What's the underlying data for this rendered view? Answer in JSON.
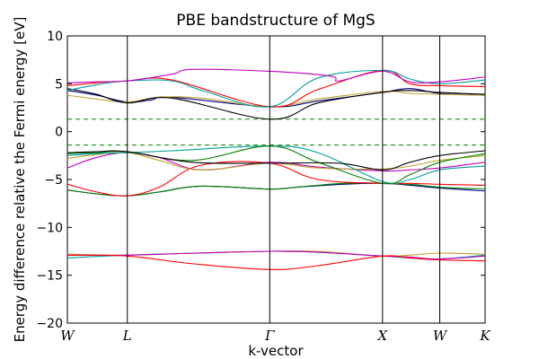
{
  "chart_data": {
    "type": "line",
    "title": "PBE bandstructure of MgS",
    "xlabel": "k-vector",
    "ylabel": "Energy difference relative the Fermi energy [eV]",
    "ylim": [
      -20,
      10
    ],
    "xlim": [
      0,
      1
    ],
    "yticks": [
      10,
      5,
      0,
      -5,
      -10,
      -15,
      -20
    ],
    "ytick_labels": [
      "10",
      "5",
      "0",
      "−5",
      "−10",
      "−15",
      "−20"
    ],
    "kpoints": [
      {
        "label": "W",
        "x": 0.0
      },
      {
        "label": "L",
        "x": 0.1435
      },
      {
        "label": "Γ",
        "x": 0.4845
      },
      {
        "label": "X",
        "x": 0.7545
      },
      {
        "label": "W",
        "x": 0.8915
      },
      {
        "label": "K",
        "x": 1.0
      }
    ],
    "fermi_lines": [
      1.3,
      -1.4
    ],
    "grid": false,
    "series": [
      {
        "color": "#000080",
        "x": [
          0,
          0.07,
          0.1435,
          0.22,
          0.32,
          0.4845,
          0.55,
          0.66,
          0.7545,
          0.82,
          0.8915,
          1.0
        ],
        "values": [
          -6.1,
          -6.5,
          -6.7,
          -6.3,
          -5.7,
          -6.0,
          -5.8,
          -5.5,
          -5.4,
          -5.6,
          -5.9,
          -6.2
        ]
      },
      {
        "color": "#008000",
        "x": [
          0,
          0.07,
          0.1435,
          0.22,
          0.32,
          0.4845,
          0.55,
          0.66,
          0.7545,
          0.82,
          0.8915,
          1.0
        ],
        "values": [
          -6.1,
          -6.5,
          -6.7,
          -6.3,
          -5.7,
          -6.0,
          -5.8,
          -5.4,
          -5.4,
          -5.5,
          -5.8,
          -6.0
        ]
      },
      {
        "color": "#ff0000",
        "x": [
          0,
          0.07,
          0.1435,
          0.22,
          0.32,
          0.4845,
          0.6,
          0.7545,
          0.82,
          0.8915,
          1.0
        ],
        "values": [
          -5.5,
          -6.3,
          -6.7,
          -5.8,
          -3.5,
          -3.3,
          -5.0,
          -5.4,
          -5.4,
          -5.5,
          -5.6
        ]
      },
      {
        "color": "#c000c0",
        "x": [
          0,
          0.07,
          0.1435,
          0.22,
          0.32,
          0.4845,
          0.6,
          0.7545,
          0.82,
          0.8915,
          1.0
        ],
        "values": [
          -3.8,
          -2.7,
          -2.2,
          -2.7,
          -4.0,
          -3.2,
          -3.7,
          -4.1,
          -4.0,
          -3.8,
          -3.2
        ]
      },
      {
        "color": "#c0a030",
        "x": [
          0,
          0.07,
          0.1435,
          0.22,
          0.32,
          0.4845,
          0.6,
          0.7545,
          0.82,
          0.8915,
          1.0
        ],
        "values": [
          -2.8,
          -2.4,
          -2.2,
          -3.0,
          -4.0,
          -3.3,
          -3.8,
          -3.9,
          -3.6,
          -3.0,
          -2.5
        ]
      },
      {
        "color": "#00a0a0",
        "x": [
          0,
          0.07,
          0.1435,
          0.25,
          0.4845,
          0.6,
          0.7545,
          0.82,
          0.8915,
          1.0
        ],
        "values": [
          -2.5,
          -2.3,
          -2.2,
          -2.0,
          -1.5,
          -2.2,
          -5.2,
          -5.0,
          -4.0,
          -3.6
        ]
      },
      {
        "color": "#008000",
        "x": [
          0,
          0.07,
          0.1435,
          0.3,
          0.4845,
          0.6,
          0.7545,
          0.82,
          0.8915,
          1.0
        ],
        "values": [
          -2.3,
          -2.2,
          -2.1,
          -3.0,
          -1.5,
          -3.2,
          -5.4,
          -4.5,
          -3.2,
          -2.3
        ]
      },
      {
        "color": "#000000",
        "x": [
          0,
          0.07,
          0.1435,
          0.3,
          0.4845,
          0.65,
          0.7545,
          0.82,
          0.8915,
          1.0
        ],
        "values": [
          -2.2,
          -2.1,
          -2.1,
          -3.2,
          -3.3,
          -3.3,
          -4.0,
          -3.2,
          -2.5,
          -2.0
        ]
      },
      {
        "color": "#000080",
        "x": [
          0,
          0.07,
          0.1435,
          0.2,
          0.25,
          0.4845,
          0.6,
          0.7545,
          0.82,
          0.8915,
          1.0
        ],
        "values": [
          4.3,
          3.8,
          3.1,
          3.3,
          3.6,
          2.6,
          3.2,
          4.1,
          4.5,
          4.0,
          3.8
        ]
      },
      {
        "color": "#c0a030",
        "x": [
          0,
          0.07,
          0.1435,
          0.22,
          0.32,
          0.4845,
          0.6,
          0.7545,
          0.82,
          0.8915,
          1.0
        ],
        "values": [
          3.8,
          3.4,
          3.1,
          3.6,
          3.5,
          2.6,
          3.4,
          4.2,
          4.0,
          3.9,
          3.8
        ]
      },
      {
        "color": "#000000",
        "x": [
          0,
          0.07,
          0.1435,
          0.25,
          0.4845,
          0.6,
          0.7545,
          0.82,
          0.8915,
          1.0
        ],
        "values": [
          4.5,
          3.9,
          3.0,
          3.5,
          1.3,
          3.0,
          4.1,
          4.3,
          4.1,
          3.9
        ]
      },
      {
        "color": "#ff0000",
        "x": [
          0,
          0.07,
          0.1435,
          0.25,
          0.4845,
          0.6,
          0.7545,
          0.82,
          0.8915,
          1.0
        ],
        "values": [
          4.8,
          5.1,
          5.3,
          5.4,
          2.6,
          4.4,
          6.4,
          5.0,
          4.8,
          4.7
        ]
      },
      {
        "color": "#00a0a0",
        "x": [
          0,
          0.07,
          0.1435,
          0.25,
          0.33,
          0.4845,
          0.6,
          0.7545,
          0.82,
          0.8915,
          1.0
        ],
        "values": [
          4.3,
          4.9,
          5.3,
          5.3,
          4.2,
          2.6,
          5.6,
          6.4,
          5.5,
          5.0,
          5.4
        ]
      },
      {
        "color": "#c000c0",
        "x": [
          0,
          0.07,
          0.1435,
          0.25,
          0.3,
          0.4845,
          0.63,
          0.65,
          0.7545,
          0.82,
          0.8915,
          1.0
        ],
        "values": [
          5.1,
          5.2,
          5.3,
          6.0,
          6.5,
          6.3,
          5.8,
          5.3,
          6.3,
          5.2,
          5.2,
          5.7
        ]
      },
      {
        "color": "#00a0a0",
        "x": [
          0,
          0.1435,
          0.3,
          0.4845,
          0.6,
          0.7545,
          0.82,
          0.8915,
          1.0
        ],
        "values": [
          -13.2,
          -12.9,
          -12.7,
          -12.5,
          -12.6,
          -13.0,
          -13.2,
          -13.3,
          -12.9
        ]
      },
      {
        "color": "#c0a030",
        "x": [
          0,
          0.1435,
          0.3,
          0.4845,
          0.6,
          0.7545,
          0.82,
          0.8915,
          1.0
        ],
        "values": [
          -12.8,
          -12.9,
          -12.7,
          -12.5,
          -12.5,
          -13.0,
          -12.9,
          -12.7,
          -12.8
        ]
      },
      {
        "color": "#c000c0",
        "x": [
          0,
          0.1435,
          0.3,
          0.4845,
          0.6,
          0.7545,
          0.82,
          0.8915,
          1.0
        ],
        "values": [
          -12.9,
          -12.9,
          -12.7,
          -12.5,
          -12.6,
          -13.0,
          -13.1,
          -13.3,
          -13.0
        ]
      },
      {
        "color": "#ff0000",
        "x": [
          0,
          0.1435,
          0.3,
          0.4845,
          0.6,
          0.7545,
          0.82,
          0.8915,
          1.0
        ],
        "values": [
          -12.9,
          -13.0,
          -13.8,
          -14.4,
          -14.0,
          -13.0,
          -13.2,
          -13.4,
          -13.5
        ]
      }
    ]
  }
}
